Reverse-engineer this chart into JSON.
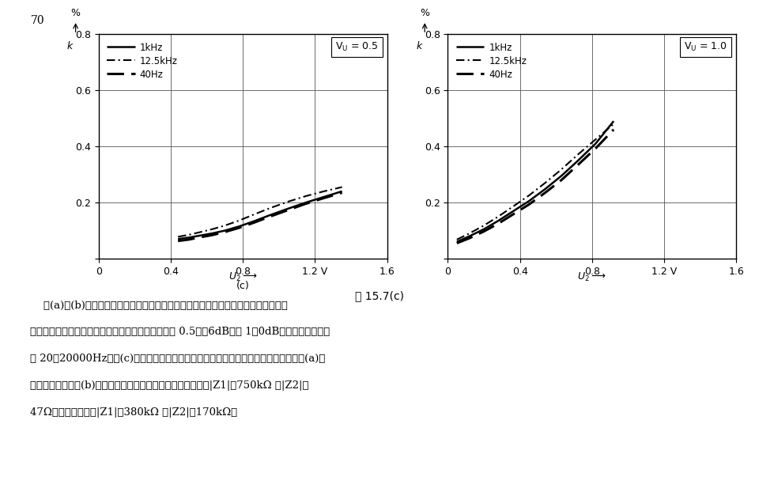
{
  "page_number": "70",
  "fig_caption": "图 15.7(c)",
  "description_line1": "    图(a)和(b)示出在立体声设备中的调节器电路。这里将每个通道信号电压的一部分都",
  "description_line2": "引至另一个通道。两个调节器电路的电压放大系数为 0.5（－6dB）或 1（0dB）。传输频带范围",
  "description_line3": "为 20～20000Hz。图(c)示出两种电路畜变系数的比较。在同样大小畜变系数情况下图(a)电",
  "description_line4": "路输出电压要比图(b)电路高几倍。前者输入和输出阻抗分别为|Z1|＝750kΩ 和|Z2|＝",
  "description_line5": "47Ω，而后者分别为|Z1|＝380kΩ 和|Z2|＝170kΩ。",
  "subplot_left": {
    "title_label": "V_U = 0.5",
    "xlim": [
      0,
      1.6
    ],
    "ylim": [
      0,
      0.8
    ],
    "xticks": [
      0,
      0.4,
      0.8,
      1.2,
      1.6
    ],
    "xtick_labels": [
      "0",
      "0.4",
      "0.8",
      "1.2 V",
      "1.6"
    ],
    "yticks": [
      0,
      0.2,
      0.4,
      0.6,
      0.8
    ],
    "curves": {
      "1kHz": {
        "x": [
          0.44,
          0.5,
          0.56,
          0.63,
          0.7,
          0.78,
          0.86,
          0.95,
          1.05,
          1.15,
          1.25,
          1.35
        ],
        "y": [
          0.07,
          0.075,
          0.082,
          0.09,
          0.1,
          0.115,
          0.133,
          0.155,
          0.178,
          0.2,
          0.22,
          0.24
        ],
        "linestyle": "solid",
        "linewidth": 1.8
      },
      "12.5kHz": {
        "x": [
          0.44,
          0.5,
          0.56,
          0.63,
          0.7,
          0.78,
          0.86,
          0.95,
          1.05,
          1.15,
          1.25,
          1.35
        ],
        "y": [
          0.078,
          0.085,
          0.094,
          0.105,
          0.118,
          0.136,
          0.157,
          0.18,
          0.203,
          0.223,
          0.24,
          0.255
        ],
        "linestyle": "dashdot",
        "linewidth": 1.5
      },
      "40Hz": {
        "x": [
          0.44,
          0.5,
          0.56,
          0.63,
          0.7,
          0.78,
          0.86,
          0.95,
          1.05,
          1.15,
          1.25,
          1.35
        ],
        "y": [
          0.063,
          0.068,
          0.076,
          0.084,
          0.095,
          0.11,
          0.128,
          0.15,
          0.173,
          0.196,
          0.216,
          0.235
        ],
        "linestyle": "dashed",
        "linewidth": 2.2
      }
    }
  },
  "subplot_right": {
    "title_label": "V_U = 1.0",
    "xlim": [
      0,
      1.6
    ],
    "ylim": [
      0,
      0.8
    ],
    "xticks": [
      0,
      0.4,
      0.8,
      1.2,
      1.6
    ],
    "xtick_labels": [
      "0",
      "0.4",
      "0.8",
      "1.2 V",
      "1.6"
    ],
    "yticks": [
      0,
      0.2,
      0.4,
      0.6,
      0.8
    ],
    "curves": {
      "1kHz": {
        "x": [
          0.05,
          0.12,
          0.2,
          0.28,
          0.36,
          0.45,
          0.54,
          0.63,
          0.72,
          0.82,
          0.92
        ],
        "y": [
          0.06,
          0.08,
          0.105,
          0.135,
          0.168,
          0.205,
          0.248,
          0.295,
          0.348,
          0.41,
          0.49
        ],
        "linestyle": "solid",
        "linewidth": 1.8
      },
      "12.5kHz": {
        "x": [
          0.05,
          0.12,
          0.2,
          0.28,
          0.36,
          0.45,
          0.54,
          0.63,
          0.72,
          0.82,
          0.92
        ],
        "y": [
          0.068,
          0.09,
          0.118,
          0.15,
          0.185,
          0.225,
          0.27,
          0.318,
          0.37,
          0.425,
          0.48
        ],
        "linestyle": "dashdot",
        "linewidth": 1.5
      },
      "40Hz": {
        "x": [
          0.05,
          0.12,
          0.2,
          0.28,
          0.36,
          0.45,
          0.54,
          0.63,
          0.72,
          0.82,
          0.92
        ],
        "y": [
          0.055,
          0.073,
          0.097,
          0.125,
          0.157,
          0.193,
          0.235,
          0.28,
          0.333,
          0.393,
          0.46
        ],
        "linestyle": "dashed",
        "linewidth": 2.2
      }
    }
  },
  "background_color": "#ffffff",
  "grid_color": "#888888",
  "line_color": "#000000"
}
